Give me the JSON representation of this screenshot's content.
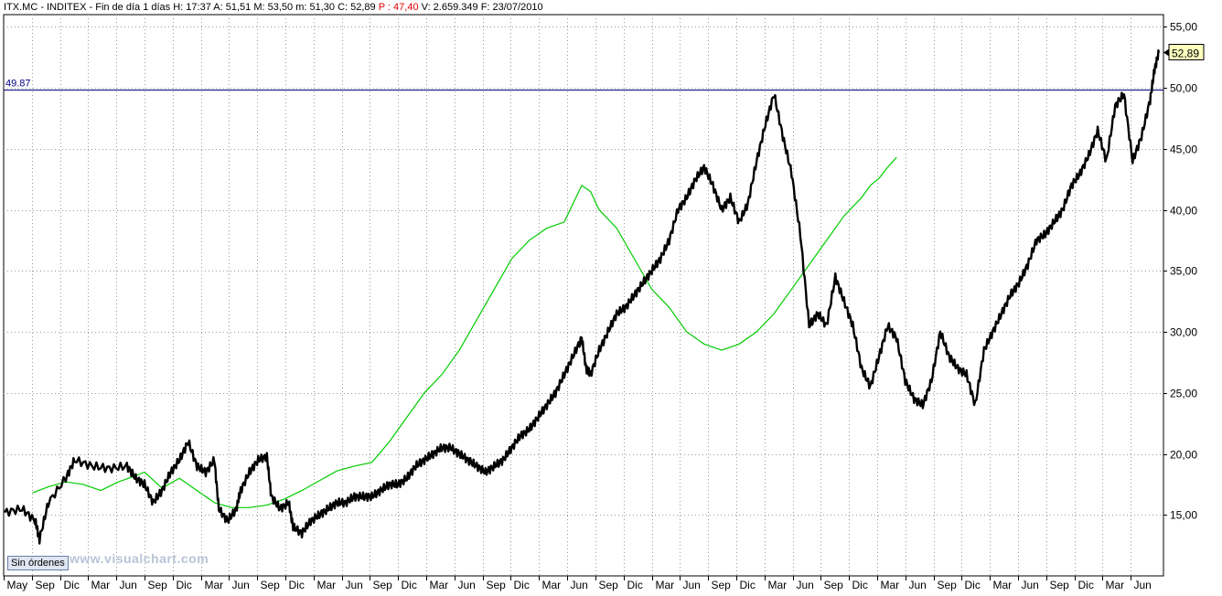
{
  "header": {
    "symbol": "ITX.MC - INDITEX - Fin de día 1 días",
    "high": "H: 17:37",
    "ask": "A: 51,51",
    "max": "M: 53,50",
    "min": "m: 51,30",
    "close": "C: 52,89",
    "prev": "P : 47,40",
    "volume": "V: 2.659.349",
    "date": "F: 23/07/2010"
  },
  "brand": "www.visualchart.com",
  "orders_button": "Sin órdenes",
  "reference_line": {
    "label": "49.87",
    "value": 49.87,
    "color": "#000080"
  },
  "last_price": {
    "label": "52,89",
    "value": 52.89
  },
  "colors": {
    "price": "#000000",
    "moving_average": "#00cc00",
    "grid": "#9a9a9a",
    "accent_red": "#e00000"
  },
  "chart_data": {
    "type": "line",
    "title": "ITX.MC - INDITEX",
    "xlabel": "",
    "ylabel": "",
    "ylim": [
      10,
      56
    ],
    "grid": true,
    "y_ticks": [
      15,
      20,
      25,
      30,
      35,
      40,
      45,
      50,
      55
    ],
    "y_tick_labels": [
      "15,00",
      "20,00",
      "25,00",
      "30,00",
      "35,00",
      "40,00",
      "45,00",
      "50,00",
      "55,00"
    ],
    "x_tick_labels": [
      "May",
      "Sep",
      "Dic",
      "Mar",
      "Jun",
      "Sep",
      "Dic",
      "Mar",
      "Jun",
      "Sep",
      "Dic",
      "Mar",
      "Jun",
      "Sep",
      "Dic",
      "Mar",
      "Jun",
      "Sep",
      "Dic",
      "Mar",
      "Jun",
      "Sep",
      "Dic",
      "Mar",
      "Jun",
      "Sep",
      "Dic",
      "Mar",
      "Jun",
      "Sep",
      "Dic",
      "Mar",
      "Jun",
      "Sep",
      "Dic",
      "Mar",
      "Jun",
      "Sep",
      "Dic",
      "Mar",
      "Jun"
    ],
    "series": [
      {
        "values": [
          [
            0,
            15.2
          ],
          [
            2,
            15.5
          ],
          [
            3.5,
            14.5
          ],
          [
            4,
            13.0
          ],
          [
            5,
            16.0
          ],
          [
            7,
            18.0
          ],
          [
            8,
            19.5
          ],
          [
            10,
            19.0
          ],
          [
            12,
            18.8
          ],
          [
            14,
            19.0
          ],
          [
            15,
            18.0
          ],
          [
            16,
            17.5
          ],
          [
            17,
            16.0
          ],
          [
            18,
            17.0
          ],
          [
            19,
            18.5
          ],
          [
            20,
            19.5
          ],
          [
            21,
            21.0
          ],
          [
            22,
            19.0
          ],
          [
            23,
            18.5
          ],
          [
            24,
            19.5
          ],
          [
            24.5,
            15.5
          ],
          [
            25.5,
            14.5
          ],
          [
            26.5,
            15.5
          ],
          [
            27,
            17.0
          ],
          [
            28,
            18.5
          ],
          [
            29,
            19.5
          ],
          [
            30,
            19.8
          ],
          [
            30.5,
            16.5
          ],
          [
            31.5,
            15.5
          ],
          [
            32.5,
            16.0
          ],
          [
            33,
            14.0
          ],
          [
            34,
            13.5
          ],
          [
            35,
            14.5
          ],
          [
            36,
            15.0
          ],
          [
            37,
            15.5
          ],
          [
            38,
            16.0
          ],
          [
            39,
            16.0
          ],
          [
            40,
            16.5
          ],
          [
            41,
            16.5
          ],
          [
            42,
            16.5
          ],
          [
            43,
            17.0
          ],
          [
            44,
            17.5
          ],
          [
            45,
            17.5
          ],
          [
            46,
            18.0
          ],
          [
            47,
            19.0
          ],
          [
            48,
            19.5
          ],
          [
            49,
            20.0
          ],
          [
            50,
            20.5
          ],
          [
            51,
            20.5
          ],
          [
            52,
            20.0
          ],
          [
            53,
            19.5
          ],
          [
            54,
            19.0
          ],
          [
            55,
            18.5
          ],
          [
            56,
            19.0
          ],
          [
            57,
            19.5
          ],
          [
            58,
            20.5
          ],
          [
            59,
            21.5
          ],
          [
            60,
            22.0
          ],
          [
            61,
            23.0
          ],
          [
            62,
            24.0
          ],
          [
            63,
            25.0
          ],
          [
            64,
            26.5
          ],
          [
            65,
            28.0
          ],
          [
            66,
            29.5
          ],
          [
            66.5,
            27.0
          ],
          [
            67,
            26.5
          ],
          [
            68,
            28.5
          ],
          [
            69,
            30.0
          ],
          [
            70,
            31.5
          ],
          [
            71,
            32.0
          ],
          [
            72,
            33.0
          ],
          [
            73,
            34.0
          ],
          [
            74,
            35.0
          ],
          [
            75,
            36.0
          ],
          [
            76,
            37.5
          ],
          [
            77,
            40.0
          ],
          [
            78,
            41.0
          ],
          [
            79,
            42.5
          ],
          [
            80,
            43.5
          ],
          [
            81,
            42.0
          ],
          [
            82,
            40.0
          ],
          [
            83,
            41.0
          ],
          [
            84,
            39.0
          ],
          [
            85,
            40.5
          ],
          [
            86,
            44.0
          ],
          [
            87,
            47.0
          ],
          [
            88,
            49.5
          ],
          [
            89,
            46.0
          ],
          [
            90,
            43.0
          ],
          [
            91,
            38.0
          ],
          [
            92,
            30.5
          ],
          [
            93,
            31.5
          ],
          [
            94,
            30.5
          ],
          [
            95,
            34.5
          ],
          [
            96,
            32.5
          ],
          [
            97,
            30.5
          ],
          [
            98,
            27.0
          ],
          [
            99,
            25.5
          ],
          [
            100,
            28.0
          ],
          [
            101,
            30.5
          ],
          [
            102,
            29.5
          ],
          [
            103,
            26.0
          ],
          [
            104,
            24.5
          ],
          [
            105,
            24.0
          ],
          [
            106,
            26.0
          ],
          [
            107,
            30.0
          ],
          [
            108,
            28.0
          ],
          [
            109,
            27.0
          ],
          [
            110,
            26.5
          ],
          [
            111,
            24.0
          ],
          [
            112,
            28.5
          ],
          [
            113,
            30.0
          ],
          [
            114,
            31.5
          ],
          [
            115,
            33.0
          ],
          [
            116,
            34.0
          ],
          [
            117,
            35.5
          ],
          [
            118,
            37.5
          ],
          [
            119,
            38.0
          ],
          [
            120,
            39.0
          ],
          [
            121,
            40.0
          ],
          [
            122,
            42.0
          ],
          [
            123,
            43.0
          ],
          [
            124,
            44.5
          ],
          [
            125,
            46.5
          ],
          [
            126,
            44.0
          ],
          [
            127,
            48.5
          ],
          [
            128,
            49.5
          ],
          [
            129,
            44.0
          ],
          [
            130,
            46.0
          ],
          [
            131,
            49.0
          ],
          [
            131.5,
            51.5
          ],
          [
            132,
            52.89
          ]
        ]
      },
      {
        "values": [
          [
            3.2,
            16.8
          ],
          [
            5,
            17.3
          ],
          [
            7,
            17.7
          ],
          [
            9,
            17.5
          ],
          [
            11,
            17.0
          ],
          [
            13,
            17.7
          ],
          [
            15,
            18.2
          ],
          [
            16,
            18.5
          ],
          [
            18,
            17.2
          ],
          [
            20,
            18.0
          ],
          [
            22,
            17.0
          ],
          [
            24,
            16.0
          ],
          [
            26,
            15.6
          ],
          [
            28,
            15.6
          ],
          [
            30,
            15.8
          ],
          [
            32,
            16.3
          ],
          [
            34,
            17.0
          ],
          [
            36,
            17.8
          ],
          [
            38,
            18.6
          ],
          [
            40,
            19.0
          ],
          [
            42,
            19.3
          ],
          [
            44,
            21.0
          ],
          [
            46,
            23.0
          ],
          [
            48,
            25.0
          ],
          [
            50,
            26.5
          ],
          [
            52,
            28.5
          ],
          [
            54,
            31.0
          ],
          [
            56,
            33.5
          ],
          [
            58,
            36.0
          ],
          [
            60,
            37.5
          ],
          [
            62,
            38.5
          ],
          [
            64,
            39.0
          ],
          [
            65,
            40.5
          ],
          [
            66,
            42.0
          ],
          [
            67,
            41.5
          ],
          [
            68,
            40.0
          ],
          [
            70,
            38.5
          ],
          [
            72,
            36.0
          ],
          [
            74,
            33.5
          ],
          [
            76,
            32.0
          ],
          [
            78,
            30.0
          ],
          [
            80,
            29.0
          ],
          [
            82,
            28.5
          ],
          [
            84,
            29.0
          ],
          [
            86,
            30.0
          ],
          [
            88,
            31.5
          ],
          [
            90,
            33.5
          ],
          [
            92,
            35.5
          ],
          [
            94,
            37.5
          ],
          [
            96,
            39.5
          ],
          [
            98,
            41.0
          ],
          [
            99,
            42.0
          ],
          [
            100,
            42.6
          ],
          [
            101,
            43.5
          ],
          [
            102,
            44.3
          ]
        ]
      }
    ]
  }
}
